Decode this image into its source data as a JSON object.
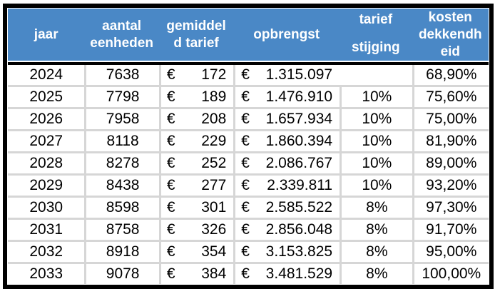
{
  "colors": {
    "header_bg": "#4a88c6",
    "header_text": "#ffffff",
    "grid_line": "#d6d6d6",
    "outer_border": "#000000",
    "cell_bg": "#ffffff",
    "text": "#000000"
  },
  "table": {
    "currency_symbol": "€",
    "headers": {
      "jaar": [
        "jaar"
      ],
      "aantal_eenheden": [
        "aantal",
        "eenheden"
      ],
      "gemiddeld_tarief": [
        "gemiddel",
        "d tarief"
      ],
      "opbrengst": [
        "opbrengst"
      ],
      "tarief_stijging": [
        "tarief",
        "stijging"
      ],
      "kosten_dekkendheid": [
        "kosten",
        "dekkendh",
        "eid"
      ]
    },
    "rows": [
      {
        "jaar": "2024",
        "aantal_eenheden": "7638",
        "gemiddeld_tarief": "172",
        "opbrengst": "1.315.097",
        "tarief_stijging": "",
        "kosten_dekkendheid": "68,90%"
      },
      {
        "jaar": "2025",
        "aantal_eenheden": "7798",
        "gemiddeld_tarief": "189",
        "opbrengst": "1.476.910",
        "tarief_stijging": "10%",
        "kosten_dekkendheid": "75,60%"
      },
      {
        "jaar": "2026",
        "aantal_eenheden": "7958",
        "gemiddeld_tarief": "208",
        "opbrengst": "1.657.934",
        "tarief_stijging": "10%",
        "kosten_dekkendheid": "75,00%"
      },
      {
        "jaar": "2027",
        "aantal_eenheden": "8118",
        "gemiddeld_tarief": "229",
        "opbrengst": "1.860.394",
        "tarief_stijging": "10%",
        "kosten_dekkendheid": "81,90%"
      },
      {
        "jaar": "2028",
        "aantal_eenheden": "8278",
        "gemiddeld_tarief": "252",
        "opbrengst": "2.086.767",
        "tarief_stijging": "10%",
        "kosten_dekkendheid": "89,00%"
      },
      {
        "jaar": "2029",
        "aantal_eenheden": "8438",
        "gemiddeld_tarief": "277",
        "opbrengst": "2.339.811",
        "tarief_stijging": "10%",
        "kosten_dekkendheid": "93,20%"
      },
      {
        "jaar": "2030",
        "aantal_eenheden": "8598",
        "gemiddeld_tarief": "301",
        "opbrengst": "2.585.522",
        "tarief_stijging": "8%",
        "kosten_dekkendheid": "97,30%"
      },
      {
        "jaar": "2031",
        "aantal_eenheden": "8758",
        "gemiddeld_tarief": "326",
        "opbrengst": "2.856.048",
        "tarief_stijging": "8%",
        "kosten_dekkendheid": "91,70%"
      },
      {
        "jaar": "2032",
        "aantal_eenheden": "8918",
        "gemiddeld_tarief": "354",
        "opbrengst": "3.153.825",
        "tarief_stijging": "8%",
        "kosten_dekkendheid": "95,00%"
      },
      {
        "jaar": "2033",
        "aantal_eenheden": "9078",
        "gemiddeld_tarief": "384",
        "opbrengst": "3.481.529",
        "tarief_stijging": "8%",
        "kosten_dekkendheid": "100,00%"
      }
    ]
  },
  "chart_data": {
    "type": "table",
    "title": "",
    "columns": [
      "jaar",
      "aantal eenheden",
      "gemiddeld tarief",
      "opbrengst",
      "tarief stijging",
      "kosten dekkendheid"
    ],
    "rows": [
      [
        "2024",
        "7638",
        "€ 172",
        "€ 1.315.097",
        "",
        "68,90%"
      ],
      [
        "2025",
        "7798",
        "€ 189",
        "€ 1.476.910",
        "10%",
        "75,60%"
      ],
      [
        "2026",
        "7958",
        "€ 208",
        "€ 1.657.934",
        "10%",
        "75,00%"
      ],
      [
        "2027",
        "8118",
        "€ 229",
        "€ 1.860.394",
        "10%",
        "81,90%"
      ],
      [
        "2028",
        "8278",
        "€ 252",
        "€ 2.086.767",
        "10%",
        "89,00%"
      ],
      [
        "2029",
        "8438",
        "€ 277",
        "€ 2.339.811",
        "10%",
        "93,20%"
      ],
      [
        "2030",
        "8598",
        "€ 301",
        "€ 2.585.522",
        "8%",
        "97,30%"
      ],
      [
        "2031",
        "8758",
        "€ 326",
        "€ 2.856.048",
        "8%",
        "91,70%"
      ],
      [
        "2032",
        "8918",
        "€ 354",
        "€ 3.153.825",
        "8%",
        "95,00%"
      ],
      [
        "2033",
        "9078",
        "€ 384",
        "€ 3.481.529",
        "8%",
        "100,00%"
      ]
    ]
  }
}
